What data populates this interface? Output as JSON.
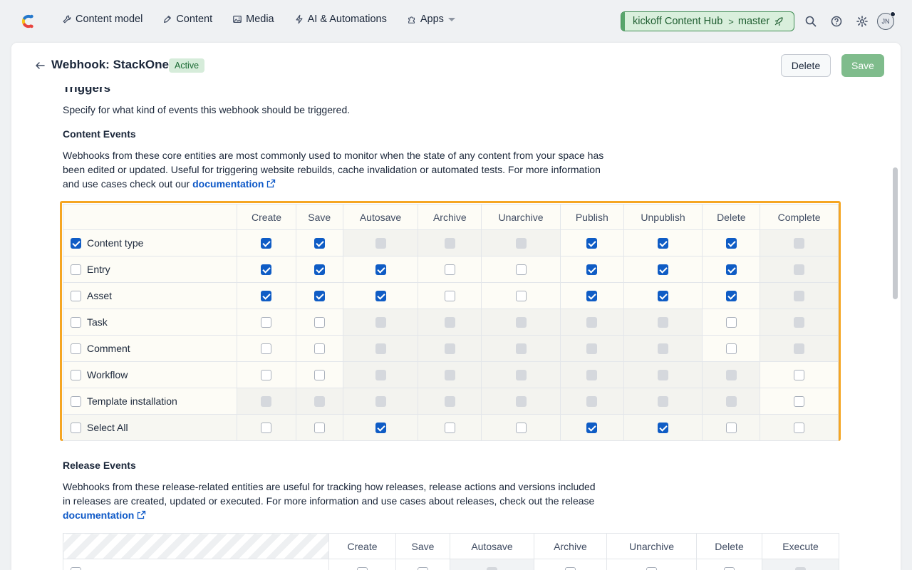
{
  "nav": {
    "items": [
      {
        "label": "Content model",
        "icon": "wrench-icon"
      },
      {
        "label": "Content",
        "icon": "pen-icon"
      },
      {
        "label": "Media",
        "icon": "image-icon"
      },
      {
        "label": "AI & Automations",
        "icon": "bolt-icon"
      },
      {
        "label": "Apps",
        "icon": "puzzle-icon"
      }
    ],
    "space": "kickoff Content Hub",
    "environment": "master",
    "avatar_initials": "JN"
  },
  "header": {
    "title": "Webhook: StackOne",
    "status": "Active",
    "delete_label": "Delete",
    "save_label": "Save"
  },
  "triggers": {
    "heading": "Triggers",
    "description": "Specify for what kind of events this webhook should be triggered."
  },
  "content_events": {
    "heading": "Content Events",
    "text": "Webhooks from these core entities are most commonly used to monitor when the state of any content from your space has been edited or updated. Useful for triggering website rebuilds, cache invalidation or automated tests. For more information and use cases check out our",
    "link": "documentation",
    "columns": [
      "Create",
      "Save",
      "Autosave",
      "Archive",
      "Unarchive",
      "Publish",
      "Unpublish",
      "Delete",
      "Complete"
    ],
    "rows": [
      {
        "label": "Content type",
        "row_checked": true,
        "cells": [
          "on",
          "on",
          "dis",
          "dis",
          "dis",
          "on",
          "on",
          "on",
          "dis"
        ]
      },
      {
        "label": "Entry",
        "row_checked": false,
        "cells": [
          "on",
          "on",
          "on",
          "off",
          "off",
          "on",
          "on",
          "on",
          "dis"
        ]
      },
      {
        "label": "Asset",
        "row_checked": false,
        "cells": [
          "on",
          "on",
          "on",
          "off",
          "off",
          "on",
          "on",
          "on",
          "dis"
        ]
      },
      {
        "label": "Task",
        "row_checked": false,
        "cells": [
          "off",
          "off",
          "dis",
          "dis",
          "dis",
          "dis",
          "dis",
          "off",
          "dis"
        ]
      },
      {
        "label": "Comment",
        "row_checked": false,
        "cells": [
          "off",
          "off",
          "dis",
          "dis",
          "dis",
          "dis",
          "dis",
          "off",
          "dis"
        ]
      },
      {
        "label": "Workflow",
        "row_checked": false,
        "cells": [
          "off",
          "off",
          "dis",
          "dis",
          "dis",
          "dis",
          "dis",
          "dis",
          "off"
        ]
      },
      {
        "label": "Template installation",
        "row_checked": false,
        "cells": [
          "dis",
          "dis",
          "dis",
          "dis",
          "dis",
          "dis",
          "dis",
          "dis",
          "off"
        ]
      },
      {
        "label": "Select All",
        "row_checked": false,
        "cells": [
          "off",
          "off",
          "on",
          "off",
          "off",
          "on",
          "on",
          "off",
          "off"
        ]
      }
    ]
  },
  "release_events": {
    "heading": "Release Events",
    "text": "Webhooks from these release-related entities are useful for tracking how releases, release actions and versions included in releases are created, updated or executed. For more information and use cases about releases, check out the release",
    "link": "documentation",
    "columns": [
      "Create",
      "Save",
      "Autosave",
      "Archive",
      "Unarchive",
      "Delete",
      "Execute"
    ]
  }
}
